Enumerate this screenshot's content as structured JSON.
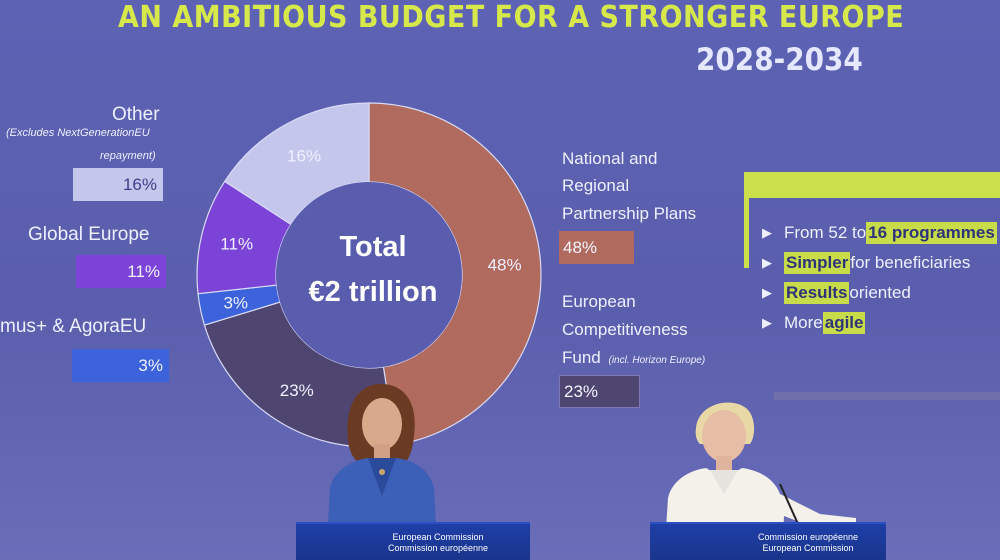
{
  "slide": {
    "title": "AN AMBITIOUS BUDGET FOR A STRONGER EUROPE",
    "years": "2028-2034"
  },
  "legend_left": [
    {
      "label": "Other",
      "note": "(Excludes NextGenerationEU repayment)",
      "note_line1": "(Excludes NextGenerationEU",
      "note_line2": "repayment)",
      "value": "16%",
      "color": "#c4c6ec"
    },
    {
      "label": "Global Europe",
      "value": "11%",
      "color": "#7b43d6"
    },
    {
      "label": "mus+ & AgoraEU",
      "value": "3%",
      "color": "#3c62dc"
    }
  ],
  "legend_right": [
    {
      "label_line1": "National and",
      "label_line2": "Regional",
      "label_line3": "Partnership Plans",
      "value": "48%",
      "color": "#b06a5e"
    },
    {
      "label_line1": "European",
      "label_line2": "Competitiveness",
      "label_line3": "Fund",
      "note": "(incl. Horizon Europe)",
      "value": "23%",
      "color": "#4e4570"
    }
  ],
  "donut": {
    "center_label": "Total",
    "center_value": "€2 trillion",
    "slices": [
      {
        "name": "National and Regional Partnership Plans",
        "value": 48,
        "label": "48%",
        "color": "#b06a5e"
      },
      {
        "name": "European Competitiveness Fund",
        "value": 23,
        "label": "23%",
        "color": "#4e4570"
      },
      {
        "name": "Erasmus+ & AgoraEU",
        "value": 3,
        "label": "3%",
        "color": "#3c62dc"
      },
      {
        "name": "Global Europe",
        "value": 11,
        "label": "11%",
        "color": "#7b43d6"
      },
      {
        "name": "Other",
        "value": 16,
        "label": "16%",
        "color": "#c4c6ec"
      }
    ],
    "hole_color": "#5a5cae"
  },
  "bullets": [
    {
      "pre": "From 52 to ",
      "hl": "16 programmes",
      "post": ""
    },
    {
      "pre": "",
      "hl": "Simpler",
      "post": " for beneficiaries"
    },
    {
      "pre": "",
      "hl": "Results",
      "post": " oriented"
    },
    {
      "pre": "More ",
      "hl": "agile",
      "post": ""
    }
  ],
  "podiums": [
    {
      "line1": "European Commission",
      "line2": "Commission européenne"
    },
    {
      "line1": "Commission européenne",
      "line2": "European Commission"
    }
  ]
}
